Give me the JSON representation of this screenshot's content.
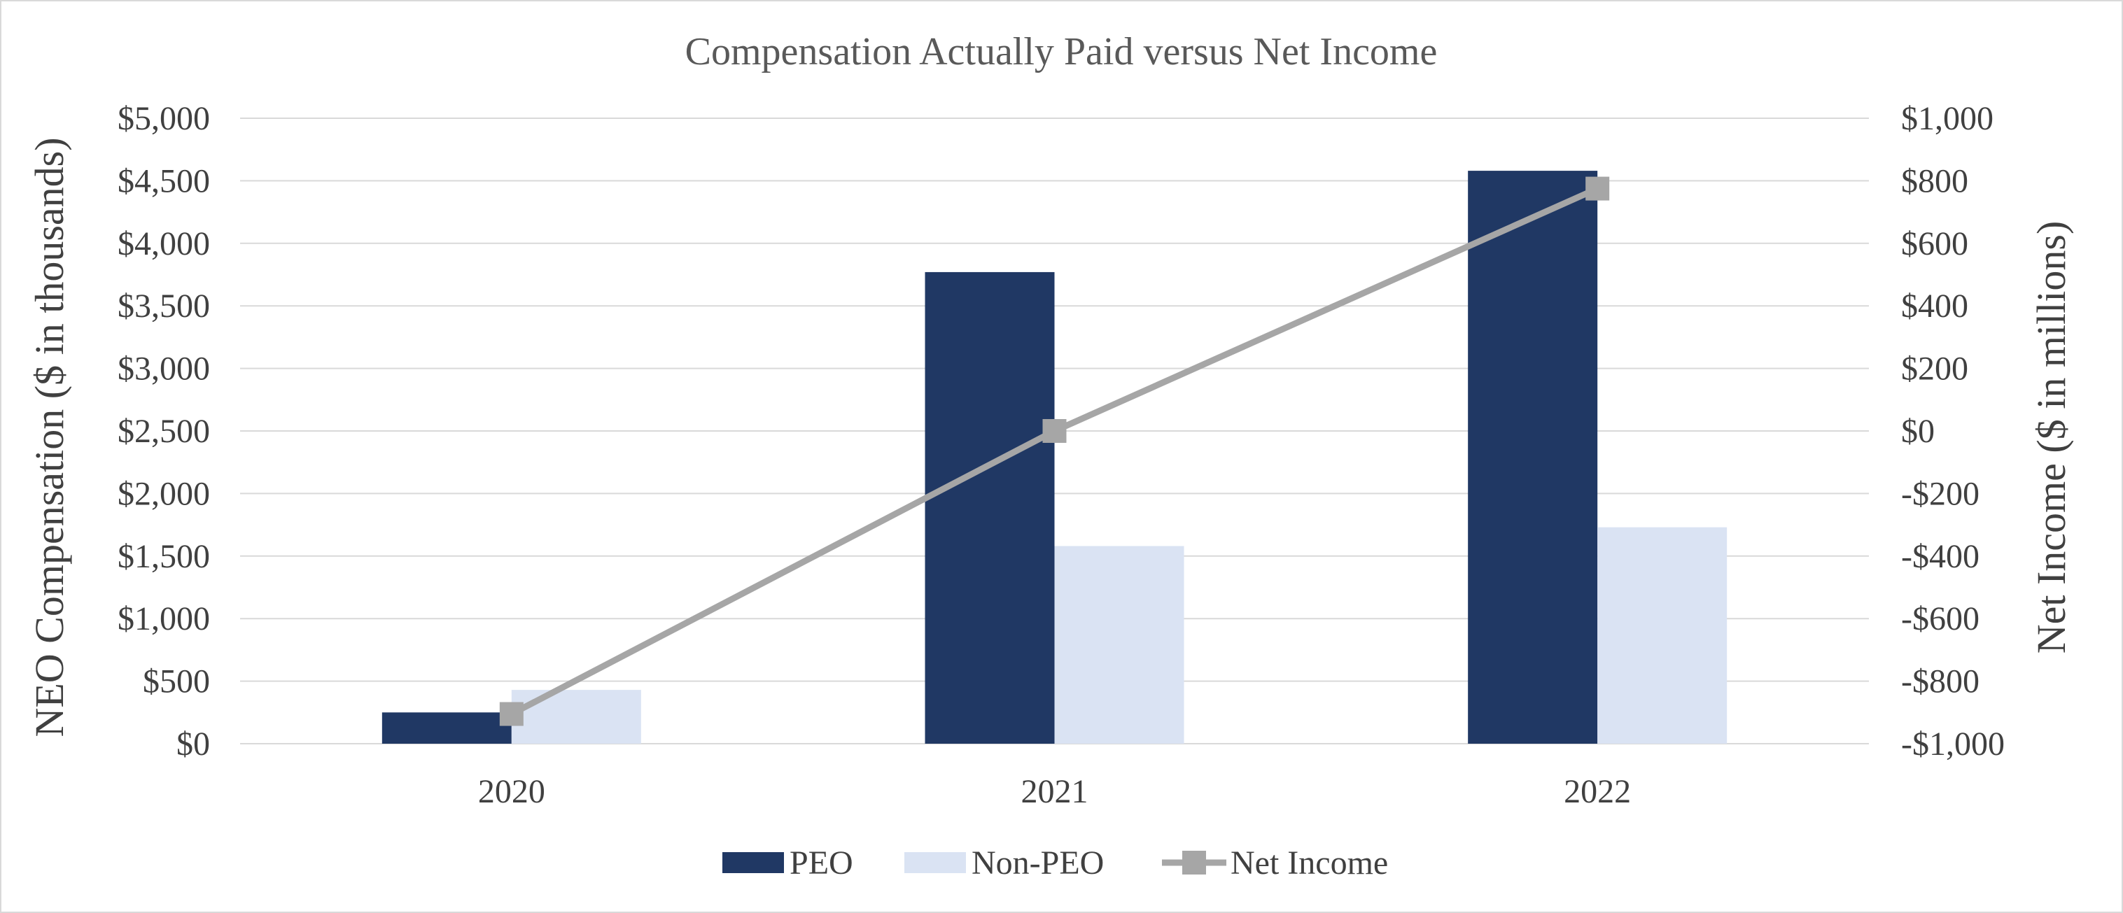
{
  "chart_data": {
    "type": "bar",
    "title": "Compensation Actually Paid versus Net Income",
    "categories": [
      "2020",
      "2021",
      "2022"
    ],
    "series": [
      {
        "name": "PEO",
        "type": "bar",
        "axis": "left",
        "color": "#203864",
        "values": [
          250,
          3770,
          4580
        ]
      },
      {
        "name": "Non-PEO",
        "type": "bar",
        "axis": "left",
        "color": "#dae3f3",
        "values": [
          430,
          1580,
          1730
        ]
      },
      {
        "name": "Net Income",
        "type": "line",
        "axis": "right",
        "color": "#a6a6a6",
        "values": [
          -905,
          0,
          775
        ]
      }
    ],
    "ylabel_left": "NEO Compensation ($ in thousands)",
    "ylabel_right": "Net Income ($ in millions)",
    "ylim_left": [
      0,
      5000
    ],
    "ylim_right": [
      -1000,
      1000
    ],
    "yticks_left": [
      "$0",
      "$500",
      "$1,000",
      "$1,500",
      "$2,000",
      "$2,500",
      "$3,000",
      "$3,500",
      "$4,000",
      "$4,500",
      "$5,000"
    ],
    "yticks_right": [
      "-$1,000",
      "-$800",
      "-$600",
      "-$400",
      "-$200",
      "$0",
      "$200",
      "$400",
      "$600",
      "$800",
      "$1,000"
    ],
    "legend_position": "bottom",
    "grid": true
  }
}
